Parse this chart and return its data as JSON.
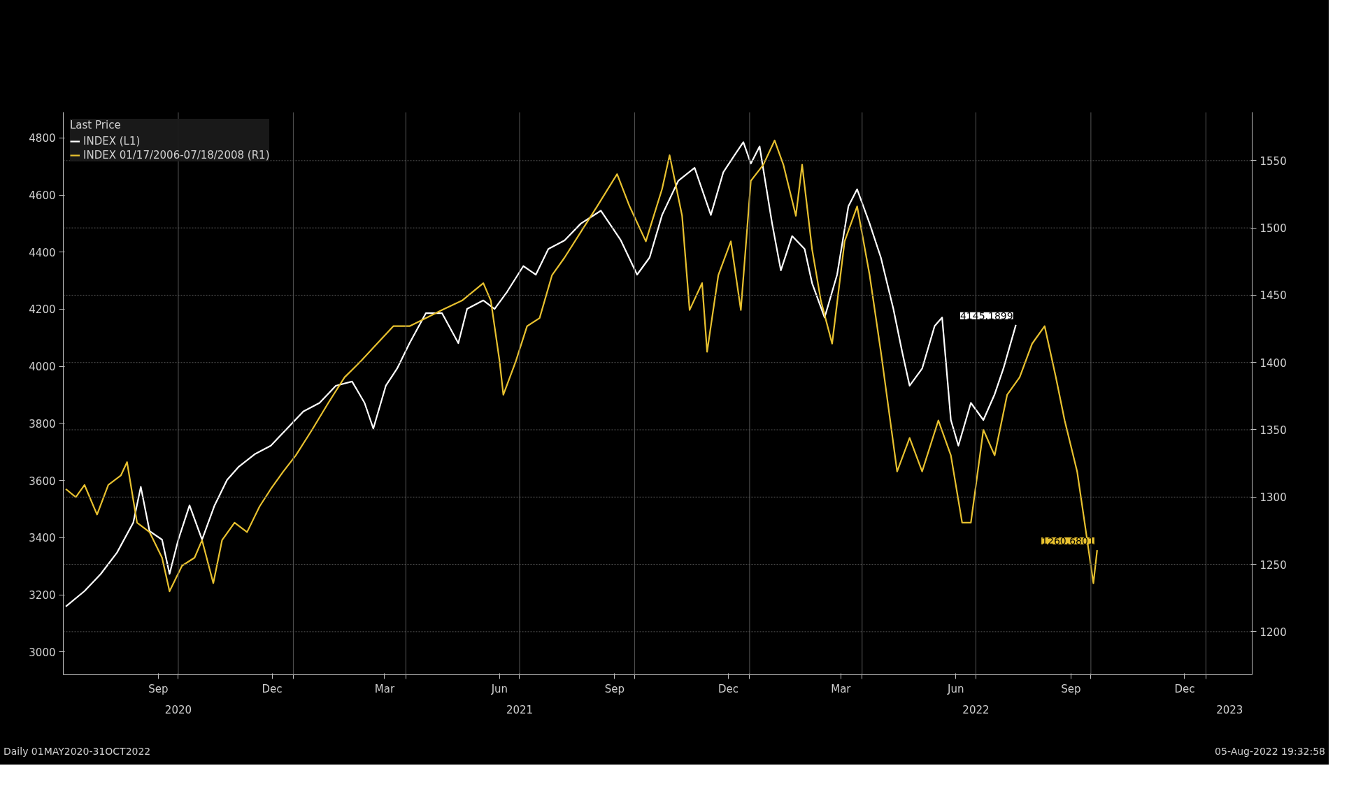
{
  "chart_data": {
    "type": "line",
    "legend_title": "Last Price",
    "legend": "top left",
    "grid": true,
    "xlim": [
      "2020-07-01",
      "2023-02-07"
    ],
    "xticks": [
      {
        "value": "2020-09-15",
        "label": "Sep"
      },
      {
        "value": "2020-12-15",
        "label": "Dec"
      },
      {
        "value": "2021-03-15",
        "label": "Mar"
      },
      {
        "value": "2021-06-15",
        "label": "Jun"
      },
      {
        "value": "2021-09-15",
        "label": "Sep"
      },
      {
        "value": "2021-12-15",
        "label": "Dec"
      },
      {
        "value": "2022-03-15",
        "label": "Mar"
      },
      {
        "value": "2022-06-15",
        "label": "Jun"
      },
      {
        "value": "2022-09-15",
        "label": "Sep"
      },
      {
        "value": "2022-12-15",
        "label": "Dec"
      },
      {
        "value": "2020-10-01",
        "label": null
      },
      {
        "value": "2021-01-01",
        "label": null
      },
      {
        "value": "2021-04-01",
        "label": null
      },
      {
        "value": "2021-07-01",
        "label": null
      },
      {
        "value": "2021-10-01",
        "label": null
      },
      {
        "value": "2022-01-01",
        "label": null
      },
      {
        "value": "2022-04-01",
        "label": null
      },
      {
        "value": "2022-07-01",
        "label": null
      },
      {
        "value": "2022-10-01",
        "label": null
      },
      {
        "value": "2023-01-01",
        "label": null
      }
    ],
    "x2lim": [
      "2020-07-01",
      "2023-02-07"
    ],
    "x2ticks": [
      {
        "value": "2020-10-01",
        "label": "2020"
      },
      {
        "value": "2021-07-01",
        "label": "2021"
      },
      {
        "value": "2022-07-01",
        "label": "2022"
      },
      {
        "value": "2023-01-20",
        "label": "2023"
      }
    ],
    "ylim": [
      2920,
      4890
    ],
    "yticks": [
      3000,
      3200,
      3400,
      3600,
      3800,
      4000,
      4200,
      4400,
      4600,
      4800
    ],
    "y2lim": [
      1168,
      1586
    ],
    "y2ticks": [
      1200,
      1250,
      1300,
      1350,
      1400,
      1450,
      1500,
      1550
    ],
    "annotations": [
      "Daily 01MAY2020-31OCT2022",
      "05-Aug-2022 19:32:58"
    ],
    "series": [
      {
        "name": "INDEX (L1)",
        "color": "#ffffff",
        "axis": "y",
        "x": [
          "2020-07-03",
          "2020-07-18",
          "2020-07-31",
          "2020-08-13",
          "2020-08-26",
          "2020-09-01",
          "2020-09-08",
          "2020-09-18",
          "2020-09-24",
          "2020-10-01",
          "2020-10-10",
          "2020-10-20",
          "2020-10-30",
          "2020-11-09",
          "2020-11-18",
          "2020-12-01",
          "2020-12-14",
          "2020-12-27",
          "2021-01-09",
          "2021-01-22",
          "2021-02-04",
          "2021-02-17",
          "2021-02-27",
          "2021-03-06",
          "2021-03-16",
          "2021-03-25",
          "2021-04-04",
          "2021-04-17",
          "2021-04-30",
          "2021-05-13",
          "2021-05-20",
          "2021-06-02",
          "2021-06-11",
          "2021-06-21",
          "2021-07-04",
          "2021-07-14",
          "2021-07-24",
          "2021-08-06",
          "2021-08-19",
          "2021-09-04",
          "2021-09-20",
          "2021-10-03",
          "2021-10-13",
          "2021-10-23",
          "2021-11-05",
          "2021-11-18",
          "2021-12-01",
          "2021-12-11",
          "2021-12-20",
          "2021-12-27",
          "2022-01-02",
          "2022-01-09",
          "2022-01-19",
          "2022-01-26",
          "2022-02-04",
          "2022-02-14",
          "2022-02-20",
          "2022-03-02",
          "2022-03-12",
          "2022-03-21",
          "2022-03-28",
          "2022-04-07",
          "2022-04-16",
          "2022-04-26",
          "2022-05-03",
          "2022-05-09",
          "2022-05-19",
          "2022-05-29",
          "2022-06-04",
          "2022-06-11",
          "2022-06-17",
          "2022-06-27",
          "2022-07-07",
          "2022-07-16",
          "2022-07-23",
          "2022-08-02"
        ],
        "values": [
          3159,
          3213,
          3273,
          3348,
          3453,
          3578,
          3423,
          3393,
          3273,
          3393,
          3513,
          3393,
          3513,
          3602,
          3647,
          3692,
          3722,
          3782,
          3842,
          3872,
          3932,
          3947,
          3872,
          3782,
          3932,
          3992,
          4081,
          4186,
          4186,
          4081,
          4201,
          4231,
          4201,
          4261,
          4351,
          4321,
          4411,
          4441,
          4500,
          4545,
          4441,
          4321,
          4381,
          4530,
          4650,
          4695,
          4530,
          4680,
          4740,
          4785,
          4710,
          4770,
          4500,
          4336,
          4456,
          4411,
          4291,
          4171,
          4321,
          4560,
          4620,
          4500,
          4381,
          4201,
          4051,
          3932,
          3992,
          4141,
          4171,
          3812,
          3722,
          3872,
          3812,
          3902,
          3992,
          4145.1899
        ],
        "value_labels": [
          null,
          null,
          null,
          null,
          null,
          null,
          null,
          null,
          null,
          null,
          null,
          null,
          null,
          null,
          null,
          null,
          null,
          null,
          null,
          null,
          null,
          null,
          null,
          null,
          null,
          null,
          null,
          null,
          null,
          null,
          null,
          null,
          null,
          null,
          null,
          null,
          null,
          null,
          null,
          null,
          null,
          null,
          null,
          null,
          null,
          null,
          null,
          null,
          null,
          null,
          null,
          null,
          null,
          null,
          null,
          null,
          null,
          null,
          null,
          null,
          null,
          null,
          null,
          null,
          null,
          null,
          null,
          null,
          null,
          null,
          null,
          null,
          null,
          null,
          null,
          "4145.1899"
        ]
      },
      {
        "name": "INDEX 01/17/2006-07/18/2008 (R1)",
        "color": "#e8c12f",
        "axis": "y2",
        "x": [
          "2020-07-03",
          "2020-07-11",
          "2020-07-18",
          "2020-07-28",
          "2020-08-06",
          "2020-08-16",
          "2020-08-21",
          "2020-08-29",
          "2020-09-08",
          "2020-09-18",
          "2020-09-24",
          "2020-10-04",
          "2020-10-14",
          "2020-10-20",
          "2020-10-29",
          "2020-11-05",
          "2020-11-15",
          "2020-11-25",
          "2020-12-05",
          "2020-12-14",
          "2020-12-24",
          "2021-01-03",
          "2021-01-16",
          "2021-01-29",
          "2021-02-11",
          "2021-02-24",
          "2021-03-09",
          "2021-03-22",
          "2021-04-04",
          "2021-04-17",
          "2021-04-30",
          "2021-05-16",
          "2021-06-02",
          "2021-06-08",
          "2021-06-15",
          "2021-06-18",
          "2021-06-28",
          "2021-07-07",
          "2021-07-17",
          "2021-07-27",
          "2021-08-06",
          "2021-08-19",
          "2021-09-01",
          "2021-09-17",
          "2021-09-27",
          "2021-10-10",
          "2021-10-23",
          "2021-10-29",
          "2021-11-08",
          "2021-11-14",
          "2021-11-24",
          "2021-11-28",
          "2021-12-07",
          "2021-12-17",
          "2021-12-25",
          "2022-01-02",
          "2022-01-12",
          "2022-01-21",
          "2022-01-28",
          "2022-02-07",
          "2022-02-12",
          "2022-02-20",
          "2022-02-27",
          "2022-03-08",
          "2022-03-18",
          "2022-03-28",
          "2022-04-07",
          "2022-04-16",
          "2022-04-29",
          "2022-05-09",
          "2022-05-19",
          "2022-06-01",
          "2022-06-11",
          "2022-06-20",
          "2022-06-27",
          "2022-07-07",
          "2022-07-16",
          "2022-07-26",
          "2022-08-05",
          "2022-08-15",
          "2022-08-25",
          "2022-09-03",
          "2022-09-10",
          "2022-09-20",
          "2022-09-26",
          "2022-10-03",
          "2022-10-06"
        ],
        "values": [
          1306,
          1300,
          1309,
          1287,
          1309,
          1316,
          1326,
          1281,
          1274,
          1255,
          1230,
          1249,
          1255,
          1268,
          1236,
          1268,
          1281,
          1274,
          1293,
          1306,
          1319,
          1331,
          1350,
          1370,
          1389,
          1401,
          1414,
          1427,
          1427,
          1433,
          1439,
          1446,
          1459,
          1446,
          1401,
          1376,
          1401,
          1427,
          1433,
          1465,
          1478,
          1497,
          1516,
          1540,
          1516,
          1490,
          1529,
          1554,
          1509,
          1439,
          1459,
          1408,
          1465,
          1490,
          1439,
          1535,
          1547,
          1565,
          1547,
          1509,
          1547,
          1484,
          1446,
          1414,
          1490,
          1516,
          1465,
          1408,
          1319,
          1344,
          1319,
          1357,
          1331,
          1281,
          1281,
          1350,
          1331,
          1376,
          1389,
          1414,
          1427,
          1389,
          1357,
          1319,
          1281,
          1236,
          1260.6801
        ],
        "value_labels": [
          null,
          null,
          null,
          null,
          null,
          null,
          null,
          null,
          null,
          null,
          null,
          null,
          null,
          null,
          null,
          null,
          null,
          null,
          null,
          null,
          null,
          null,
          null,
          null,
          null,
          null,
          null,
          null,
          null,
          null,
          null,
          null,
          null,
          null,
          null,
          null,
          null,
          null,
          null,
          null,
          null,
          null,
          null,
          null,
          null,
          null,
          null,
          null,
          null,
          null,
          null,
          null,
          null,
          null,
          null,
          null,
          null,
          null,
          null,
          null,
          null,
          null,
          null,
          null,
          null,
          null,
          null,
          null,
          null,
          null,
          null,
          null,
          null,
          null,
          null,
          null,
          null,
          null,
          null,
          null,
          null,
          null,
          null,
          null,
          null,
          null,
          "1260.6801"
        ]
      }
    ]
  }
}
